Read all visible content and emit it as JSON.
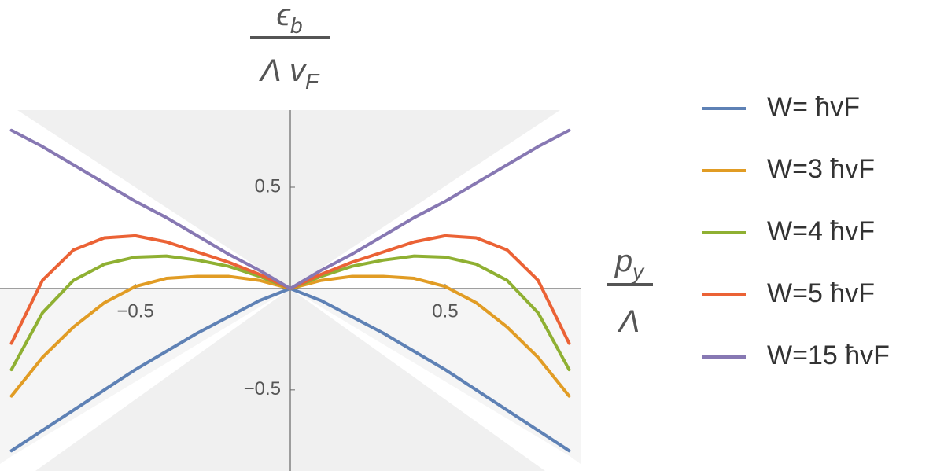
{
  "chart_data": {
    "type": "line",
    "y_label": {
      "numerator": [
        "ϵ",
        "b"
      ],
      "denominator": [
        "Λ v",
        "F"
      ]
    },
    "x_label": {
      "numerator": [
        "p",
        "y"
      ],
      "denominator": [
        "Λ"
      ]
    },
    "x": [
      -0.9,
      -0.8,
      -0.7,
      -0.6,
      -0.5,
      -0.4,
      -0.3,
      -0.2,
      -0.1,
      0,
      0.1,
      0.2,
      0.3,
      0.4,
      0.5,
      0.6,
      0.7,
      0.8,
      0.9
    ],
    "series": [
      {
        "name": "W= ħvF",
        "color": "#5e81b5",
        "values": [
          -0.8,
          -0.7,
          -0.6,
          -0.5,
          -0.4,
          -0.31,
          -0.22,
          -0.14,
          -0.06,
          0,
          -0.06,
          -0.14,
          -0.22,
          -0.31,
          -0.4,
          -0.5,
          -0.6,
          -0.7,
          -0.8
        ]
      },
      {
        "name": "W=3 ħvF",
        "color": "#e19c24",
        "values": [
          -0.53,
          -0.34,
          -0.19,
          -0.07,
          0.01,
          0.05,
          0.06,
          0.06,
          0.04,
          0,
          0.04,
          0.06,
          0.06,
          0.05,
          0.01,
          -0.07,
          -0.19,
          -0.34,
          -0.53
        ]
      },
      {
        "name": "W=4 ħvF",
        "color": "#8fb032",
        "values": [
          -0.4,
          -0.12,
          0.04,
          0.12,
          0.155,
          0.16,
          0.14,
          0.11,
          0.06,
          0,
          0.06,
          0.11,
          0.14,
          0.16,
          0.155,
          0.12,
          0.04,
          -0.12,
          -0.4
        ]
      },
      {
        "name": "W=5 ħvF",
        "color": "#eb6235",
        "values": [
          -0.27,
          0.04,
          0.19,
          0.25,
          0.26,
          0.23,
          0.18,
          0.13,
          0.07,
          0,
          0.07,
          0.13,
          0.18,
          0.23,
          0.26,
          0.25,
          0.19,
          0.04,
          -0.27
        ]
      },
      {
        "name": "W=15 ħvF",
        "color": "#8778b3",
        "values": [
          0.78,
          0.7,
          0.61,
          0.52,
          0.43,
          0.35,
          0.26,
          0.17,
          0.09,
          0,
          0.09,
          0.17,
          0.26,
          0.35,
          0.43,
          0.52,
          0.61,
          0.7,
          0.78
        ]
      }
    ],
    "xlim": [
      -0.937,
      0.937
    ],
    "ylim": [
      -0.9,
      0.88
    ],
    "xticks": [
      {
        "value": -0.5,
        "label": "−0.5"
      },
      0.5
    ],
    "yticks": [
      {
        "value": -0.5,
        "label": "−0.5"
      },
      0.5
    ]
  }
}
